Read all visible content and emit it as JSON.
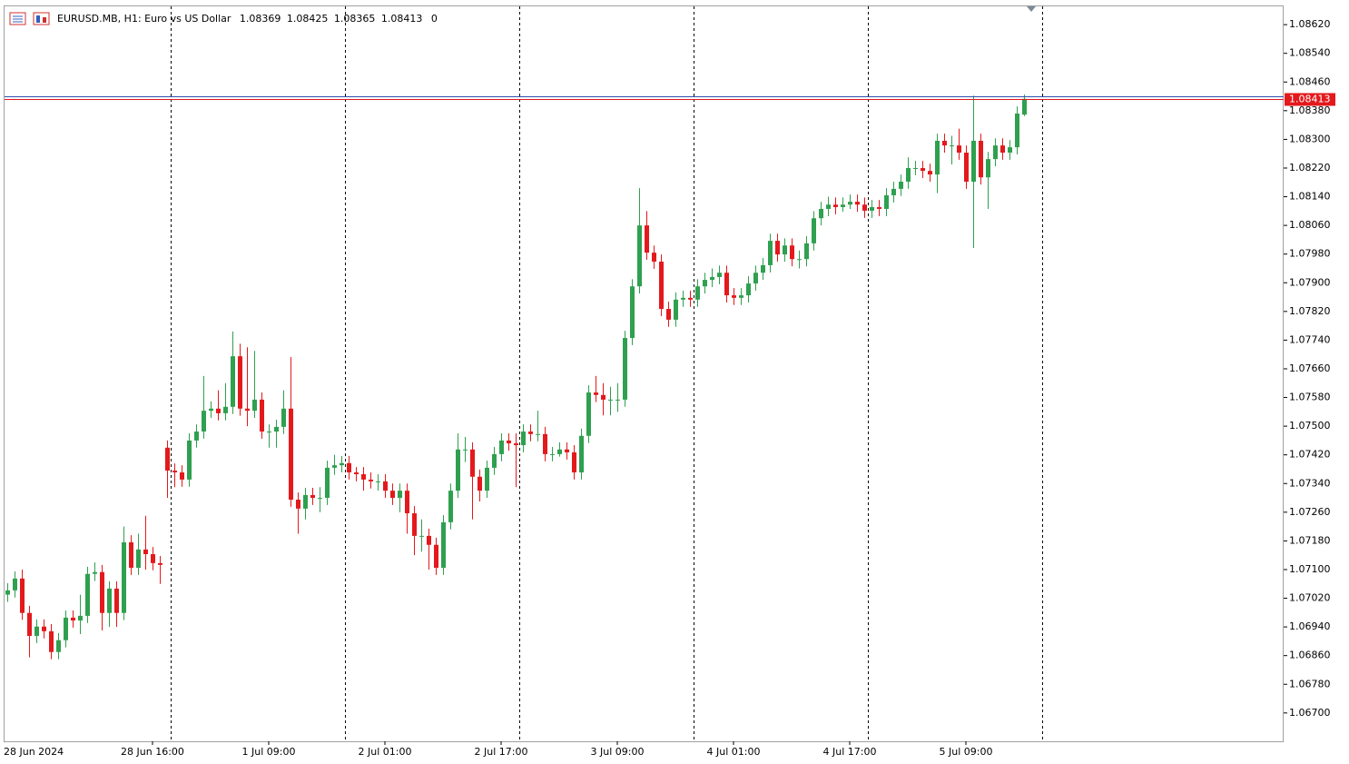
{
  "chart_data": {
    "type": "candlestick",
    "title": "EURUSD.MB, H1:  Euro vs US Dollar",
    "volume": 0,
    "up_color": "#2ea04f",
    "down_color": "#e3191c",
    "last_price_color": "#e3191c",
    "categories": [
      "28 Jun 2024",
      null,
      null,
      null,
      null,
      null,
      null,
      null,
      null,
      null,
      null,
      null,
      null,
      null,
      null,
      null,
      null,
      null,
      null,
      null,
      "28 Jun 16:00",
      null,
      null,
      null,
      null,
      null,
      null,
      null,
      null,
      null,
      null,
      null,
      null,
      null,
      null,
      null,
      "1 Jul 09:00",
      null,
      null,
      null,
      null,
      null,
      null,
      null,
      null,
      null,
      null,
      null,
      null,
      null,
      null,
      null,
      "2 Jul 01:00",
      null,
      null,
      null,
      null,
      null,
      null,
      null,
      null,
      null,
      null,
      null,
      null,
      null,
      null,
      null,
      "2 Jul 17:00",
      null,
      null,
      null,
      null,
      null,
      null,
      null,
      null,
      null,
      null,
      null,
      null,
      null,
      null,
      null,
      "3 Jul 09:00",
      null,
      null,
      null,
      null,
      null,
      null,
      null,
      null,
      null,
      null,
      null,
      null,
      null,
      null,
      null,
      "4 Jul 01:00",
      null,
      null,
      null,
      null,
      null,
      null,
      null,
      null,
      null,
      null,
      null,
      null,
      null,
      null,
      null,
      "4 Jul 17:00",
      null,
      null,
      null,
      null,
      null,
      null,
      null,
      null,
      null,
      null,
      null,
      null,
      null,
      null,
      null,
      "5 Jul 09:00",
      null,
      null,
      null,
      null,
      null,
      null,
      null,
      null
    ],
    "candles": [
      [
        1.0703,
        1.07062,
        1.0701,
        1.07042
      ],
      [
        1.07042,
        1.07095,
        1.07022,
        1.07075
      ],
      [
        1.07075,
        1.071,
        1.0696,
        1.06979
      ],
      [
        1.06979,
        1.06999,
        1.06855,
        1.06915
      ],
      [
        1.06915,
        1.06961,
        1.06895,
        1.06941
      ],
      [
        1.06941,
        1.06961,
        1.06908,
        1.06928
      ],
      [
        1.06928,
        1.06948,
        1.0685,
        1.0687
      ],
      [
        1.0687,
        1.06923,
        1.0685,
        1.06903
      ],
      [
        1.06903,
        1.06986,
        1.06883,
        1.06966
      ],
      [
        1.06966,
        1.06986,
        1.06938,
        1.06958
      ],
      [
        1.06958,
        1.0703,
        1.0692,
        1.06971
      ],
      [
        1.06971,
        1.07108,
        1.06951,
        1.07088
      ],
      [
        1.07088,
        1.0712,
        1.07068,
        1.07093
      ],
      [
        1.07093,
        1.07113,
        1.0693,
        1.06979
      ],
      [
        1.06979,
        1.07067,
        1.0694,
        1.07047
      ],
      [
        1.07047,
        1.07067,
        1.0694,
        1.06979
      ],
      [
        1.06979,
        1.0722,
        1.06959,
        1.07176
      ],
      [
        1.07176,
        1.07196,
        1.07085,
        1.07105
      ],
      [
        1.07105,
        1.072,
        1.07085,
        1.07156
      ],
      [
        1.07156,
        1.0725,
        1.071,
        1.07143
      ],
      [
        1.07143,
        1.07163,
        1.07098,
        1.07118
      ],
      [
        1.07118,
        1.07138,
        1.0706,
        1.07113
      ],
      [
        1.0744,
        1.0746,
        1.073,
        1.07376
      ],
      [
        1.07376,
        1.07396,
        1.0733,
        1.07371
      ],
      [
        1.07371,
        1.07391,
        1.07331,
        1.07351
      ],
      [
        1.07351,
        1.0748,
        1.07331,
        1.0746
      ],
      [
        1.0746,
        1.07505,
        1.0744,
        1.07485
      ],
      [
        1.07485,
        1.0764,
        1.07465,
        1.07543
      ],
      [
        1.07543,
        1.07569,
        1.07523,
        1.07549
      ],
      [
        1.07549,
        1.076,
        1.07516,
        1.07536
      ],
      [
        1.07536,
        1.0762,
        1.07516,
        1.07554
      ],
      [
        1.07554,
        1.07764,
        1.07534,
        1.07695
      ],
      [
        1.07695,
        1.0773,
        1.07529,
        1.07549
      ],
      [
        1.07549,
        1.0772,
        1.075,
        1.07543
      ],
      [
        1.07543,
        1.0771,
        1.07523,
        1.07574
      ],
      [
        1.07574,
        1.07594,
        1.07465,
        1.07485
      ],
      [
        1.07485,
        1.07505,
        1.0744,
        1.07485
      ],
      [
        1.07485,
        1.07518,
        1.0744,
        1.07498
      ],
      [
        1.07498,
        1.076,
        1.07478,
        1.07549
      ],
      [
        1.07549,
        1.07693,
        1.07275,
        1.07295
      ],
      [
        1.07295,
        1.07315,
        1.072,
        1.0727
      ],
      [
        1.0727,
        1.07328,
        1.0724,
        1.07308
      ],
      [
        1.07308,
        1.07328,
        1.0728,
        1.073
      ],
      [
        1.073,
        1.0733,
        1.0726,
        1.073
      ],
      [
        1.073,
        1.07404,
        1.0728,
        1.07384
      ],
      [
        1.07384,
        1.0742,
        1.07364,
        1.07391
      ],
      [
        1.07391,
        1.07417,
        1.07371,
        1.07397
      ],
      [
        1.07397,
        1.07417,
        1.07351,
        1.07371
      ],
      [
        1.07371,
        1.07386,
        1.07346,
        1.07366
      ],
      [
        1.07366,
        1.07386,
        1.0732,
        1.07351
      ],
      [
        1.07351,
        1.07371,
        1.07326,
        1.07346
      ],
      [
        1.07346,
        1.07366,
        1.0732,
        1.07346
      ],
      [
        1.07346,
        1.07366,
        1.073,
        1.0732
      ],
      [
        1.0732,
        1.0734,
        1.0728,
        1.073
      ],
      [
        1.073,
        1.0734,
        1.0726,
        1.0732
      ],
      [
        1.0732,
        1.0734,
        1.072,
        1.07257
      ],
      [
        1.07257,
        1.07277,
        1.0714,
        1.07194
      ],
      [
        1.07194,
        1.0724,
        1.0715,
        1.07194
      ],
      [
        1.07194,
        1.07214,
        1.071,
        1.07169
      ],
      [
        1.07169,
        1.07189,
        1.07085,
        1.07105
      ],
      [
        1.07105,
        1.07252,
        1.07085,
        1.07232
      ],
      [
        1.07232,
        1.0734,
        1.07212,
        1.0732
      ],
      [
        1.0732,
        1.0748,
        1.073,
        1.07435
      ],
      [
        1.07435,
        1.0747,
        1.074,
        1.07435
      ],
      [
        1.07435,
        1.07455,
        1.0724,
        1.07359
      ],
      [
        1.07359,
        1.07379,
        1.0729,
        1.0732
      ],
      [
        1.0732,
        1.07404,
        1.073,
        1.07384
      ],
      [
        1.07384,
        1.07442,
        1.07364,
        1.07422
      ],
      [
        1.07422,
        1.0748,
        1.07402,
        1.0746
      ],
      [
        1.0746,
        1.0748,
        1.07432,
        1.07452
      ],
      [
        1.07452,
        1.0748,
        1.0733,
        1.07447
      ],
      [
        1.07447,
        1.07505,
        1.07427,
        1.07485
      ],
      [
        1.07485,
        1.07505,
        1.07458,
        1.07478
      ],
      [
        1.07478,
        1.07543,
        1.07458,
        1.07478
      ],
      [
        1.07478,
        1.07498,
        1.07402,
        1.07422
      ],
      [
        1.07422,
        1.07442,
        1.07402,
        1.07422
      ],
      [
        1.07422,
        1.07455,
        1.07415,
        1.07435
      ],
      [
        1.07435,
        1.07455,
        1.07407,
        1.07427
      ],
      [
        1.07427,
        1.07447,
        1.07351,
        1.07371
      ],
      [
        1.07371,
        1.07493,
        1.07351,
        1.07473
      ],
      [
        1.07473,
        1.07614,
        1.07453,
        1.07594
      ],
      [
        1.07594,
        1.0764,
        1.07567,
        1.07587
      ],
      [
        1.07587,
        1.0762,
        1.0753,
        1.07574
      ],
      [
        1.07574,
        1.0761,
        1.0753,
        1.07574
      ],
      [
        1.07574,
        1.0762,
        1.0754,
        1.07574
      ],
      [
        1.07574,
        1.07766,
        1.07554,
        1.07746
      ],
      [
        1.07746,
        1.0791,
        1.07726,
        1.0789
      ],
      [
        1.0789,
        1.08164,
        1.0787,
        1.0806
      ],
      [
        1.0806,
        1.081,
        1.07964,
        1.07984
      ],
      [
        1.07984,
        1.08004,
        1.07939,
        1.07959
      ],
      [
        1.07959,
        1.07979,
        1.07807,
        1.07827
      ],
      [
        1.07827,
        1.07847,
        1.07777,
        1.07797
      ],
      [
        1.07797,
        1.07873,
        1.07777,
        1.07853
      ],
      [
        1.07853,
        1.07878,
        1.07833,
        1.07858
      ],
      [
        1.07858,
        1.07878,
        1.07833,
        1.07853
      ],
      [
        1.07853,
        1.0791,
        1.07833,
        1.0789
      ],
      [
        1.0789,
        1.07928,
        1.0787,
        1.07908
      ],
      [
        1.07908,
        1.0794,
        1.07888,
        1.07916
      ],
      [
        1.07916,
        1.07948,
        1.07896,
        1.07928
      ],
      [
        1.07928,
        1.07948,
        1.07845,
        1.07865
      ],
      [
        1.07865,
        1.07885,
        1.07838,
        1.07858
      ],
      [
        1.07858,
        1.07885,
        1.07838,
        1.07865
      ],
      [
        1.07865,
        1.07918,
        1.07845,
        1.07898
      ],
      [
        1.07898,
        1.07948,
        1.07878,
        1.07928
      ],
      [
        1.07928,
        1.07969,
        1.07908,
        1.07949
      ],
      [
        1.07949,
        1.08037,
        1.07929,
        1.08017
      ],
      [
        1.08017,
        1.08037,
        1.07959,
        1.07979
      ],
      [
        1.07979,
        1.08024,
        1.07959,
        1.08004
      ],
      [
        1.08004,
        1.08024,
        1.07946,
        1.07966
      ],
      [
        1.07966,
        1.0799,
        1.0794,
        1.07966
      ],
      [
        1.07966,
        1.0803,
        1.07946,
        1.0801
      ],
      [
        1.0801,
        1.081,
        1.0799,
        1.0808
      ],
      [
        1.0808,
        1.08126,
        1.0806,
        1.08106
      ],
      [
        1.08106,
        1.0814,
        1.08086,
        1.08118
      ],
      [
        1.08118,
        1.08138,
        1.08091,
        1.08111
      ],
      [
        1.08111,
        1.08138,
        1.08098,
        1.08118
      ],
      [
        1.08118,
        1.08146,
        1.08106,
        1.08126
      ],
      [
        1.08126,
        1.08146,
        1.08098,
        1.08118
      ],
      [
        1.08118,
        1.08138,
        1.08081,
        1.08101
      ],
      [
        1.08101,
        1.08131,
        1.08081,
        1.08111
      ],
      [
        1.08111,
        1.08131,
        1.08086,
        1.08106
      ],
      [
        1.08106,
        1.08164,
        1.08086,
        1.08144
      ],
      [
        1.08144,
        1.08182,
        1.08124,
        1.08162
      ],
      [
        1.08162,
        1.08202,
        1.08142,
        1.08182
      ],
      [
        1.08182,
        1.0825,
        1.08162,
        1.0822
      ],
      [
        1.0822,
        1.0824,
        1.082,
        1.0822
      ],
      [
        1.0822,
        1.0824,
        1.08192,
        1.08212
      ],
      [
        1.08212,
        1.08232,
        1.08182,
        1.08202
      ],
      [
        1.08202,
        1.08316,
        1.0815,
        1.08296
      ],
      [
        1.08296,
        1.08316,
        1.08263,
        1.08283
      ],
      [
        1.08283,
        1.0831,
        1.0823,
        1.08283
      ],
      [
        1.08283,
        1.0833,
        1.08243,
        1.08263
      ],
      [
        1.08263,
        1.08283,
        1.08162,
        1.08182
      ],
      [
        1.08182,
        1.08422,
        1.07997,
        1.08296
      ],
      [
        1.08296,
        1.08316,
        1.08174,
        1.08194
      ],
      [
        1.08194,
        1.08265,
        1.08106,
        1.08245
      ],
      [
        1.08245,
        1.08303,
        1.08225,
        1.08283
      ],
      [
        1.08283,
        1.08303,
        1.08243,
        1.08263
      ],
      [
        1.08263,
        1.08298,
        1.08243,
        1.08278
      ],
      [
        1.08278,
        1.08392,
        1.08258,
        1.08372
      ],
      [
        1.08369,
        1.08425,
        1.08365,
        1.08413
      ]
    ],
    "ylim": [
      1.06621,
      1.08671
    ],
    "yticks": [
      {
        "value": 1.0862,
        "label": "1.08620"
      },
      {
        "value": 1.0854,
        "label": "1.08540"
      },
      {
        "value": 1.0846,
        "label": "1.08460"
      },
      {
        "value": 1.0838,
        "label": "1.08380"
      },
      {
        "value": 1.083,
        "label": "1.08300"
      },
      {
        "value": 1.0822,
        "label": "1.08220"
      },
      {
        "value": 1.0814,
        "label": "1.08140"
      },
      {
        "value": 1.0806,
        "label": "1.08060"
      },
      {
        "value": 1.0798,
        "label": "1.07980"
      },
      {
        "value": 1.079,
        "label": "1.07900"
      },
      {
        "value": 1.0782,
        "label": "1.07820"
      },
      {
        "value": 1.0774,
        "label": "1.07740"
      },
      {
        "value": 1.0766,
        "label": "1.07660"
      },
      {
        "value": 1.0758,
        "label": "1.07580"
      },
      {
        "value": 1.075,
        "label": "1.07500"
      },
      {
        "value": 1.0742,
        "label": "1.07420"
      },
      {
        "value": 1.0734,
        "label": "1.07340"
      },
      {
        "value": 1.0726,
        "label": "1.07260"
      },
      {
        "value": 1.0718,
        "label": "1.07180"
      },
      {
        "value": 1.071,
        "label": "1.07100"
      },
      {
        "value": 1.0702,
        "label": "1.07020"
      },
      {
        "value": 1.0694,
        "label": "1.06940"
      },
      {
        "value": 1.0686,
        "label": "1.06860"
      },
      {
        "value": 1.0678,
        "label": "1.06780"
      },
      {
        "value": 1.067,
        "label": "1.06700"
      }
    ],
    "grid": false
  }
}
